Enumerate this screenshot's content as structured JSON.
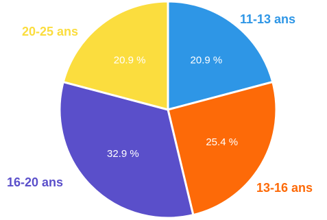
{
  "chart_data": {
    "type": "pie",
    "start_angle_deg": 0,
    "direction": "clockwise",
    "slices": [
      {
        "label": "11-13 ans",
        "value": 20.9,
        "value_label": "20.9 %",
        "color": "#2e96e6"
      },
      {
        "label": "13-16 ans",
        "value": 25.4,
        "value_label": "25.4 %",
        "color": "#fd6a08"
      },
      {
        "label": "16-20 ans",
        "value": 32.9,
        "value_label": "32.9 %",
        "color": "#5a4fca"
      },
      {
        "label": "20-25 ans",
        "value": 20.9,
        "value_label": "20.9 %",
        "color": "#fbdd3e"
      }
    ]
  }
}
